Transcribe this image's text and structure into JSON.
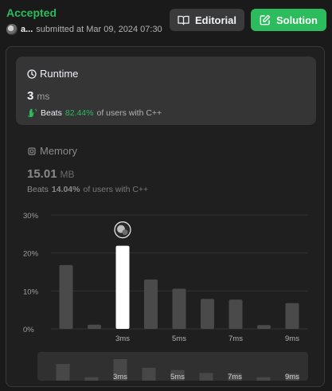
{
  "submission": {
    "status": "Accepted",
    "user": "a...",
    "submitted_text": "submitted at Mar 09, 2024 07:30"
  },
  "buttons": {
    "editorial": "Editorial",
    "solution": "Solution"
  },
  "runtime": {
    "label": "Runtime",
    "value": "3",
    "unit": "ms",
    "beats_label": "Beats",
    "beats_pct": "82.44%",
    "beats_suffix": "of users with C++"
  },
  "memory": {
    "label": "Memory",
    "value": "15.01",
    "unit": "MB",
    "beats_label": "Beats",
    "beats_pct": "14.04%",
    "beats_suffix": "of users with C++"
  },
  "colors": {
    "accent": "#2cbb5d",
    "bar": "#4a4a4a",
    "bar_highlight": "#ffffff"
  },
  "chart_data": {
    "type": "bar",
    "bar_runtimes_ms": [
      1,
      2,
      3,
      4,
      5,
      6,
      7,
      8,
      9
    ],
    "values": [
      16.8,
      1.1,
      21.9,
      13.0,
      10.6,
      7.9,
      7.7,
      1.0,
      6.8
    ],
    "highlight_index": 2,
    "x_tick_labels": [
      "3ms",
      "5ms",
      "7ms",
      "9ms"
    ],
    "y_tick_labels": [
      "30%",
      "20%",
      "10%",
      "0%"
    ],
    "ylim": [
      0,
      30
    ],
    "overview_values": [
      0.58,
      0.12,
      0.75,
      0.45,
      0.37,
      0.27,
      0.26,
      0.12,
      0.24
    ],
    "overview_tick_labels": [
      "3ms",
      "5ms",
      "7ms",
      "9ms"
    ]
  }
}
